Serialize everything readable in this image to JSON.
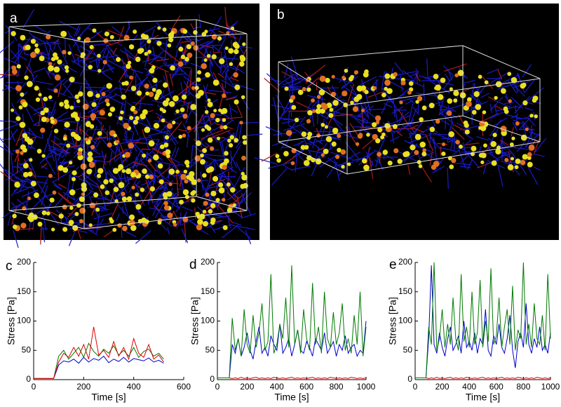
{
  "panels": [
    {
      "label": "a"
    },
    {
      "label": "b"
    }
  ],
  "chart_data": [
    {
      "type": "line",
      "label": "c",
      "xlabel": "Time [s]",
      "ylabel": "Stress [Pa]",
      "xlim": [
        0,
        600
      ],
      "ylim": [
        0,
        200
      ],
      "xticks": [
        0,
        200,
        400,
        600
      ],
      "yticks": [
        0,
        50,
        100,
        150,
        200
      ],
      "x": [
        0,
        20,
        40,
        60,
        80,
        100,
        120,
        140,
        160,
        180,
        200,
        220,
        240,
        260,
        280,
        300,
        320,
        340,
        360,
        380,
        400,
        420,
        440,
        460,
        480,
        500,
        520
      ],
      "series": [
        {
          "color": "#0000cc",
          "values": [
            2,
            2,
            2,
            2,
            2,
            25,
            32,
            30,
            35,
            28,
            38,
            30,
            36,
            33,
            40,
            29,
            35,
            31,
            38,
            30,
            36,
            34,
            32,
            37,
            30,
            33,
            28
          ]
        },
        {
          "color": "#007a00",
          "values": [
            2,
            2,
            2,
            2,
            2,
            40,
            50,
            35,
            45,
            55,
            38,
            62,
            48,
            40,
            52,
            45,
            58,
            42,
            50,
            40,
            55,
            38,
            48,
            52,
            40,
            45,
            35
          ]
        },
        {
          "color": "#e00000",
          "values": [
            2,
            2,
            2,
            2,
            2,
            30,
            45,
            38,
            55,
            40,
            60,
            35,
            90,
            42,
            50,
            38,
            65,
            40,
            55,
            35,
            70,
            45,
            38,
            60,
            35,
            42,
            30
          ]
        }
      ]
    },
    {
      "type": "line",
      "label": "d",
      "xlabel": "Time [s]",
      "ylabel": "Stress [Pa]",
      "xlim": [
        0,
        1000
      ],
      "ylim": [
        0,
        200
      ],
      "xticks": [
        0,
        200,
        400,
        600,
        800,
        1000
      ],
      "yticks": [
        0,
        50,
        100,
        150,
        200
      ],
      "x": [
        0,
        20,
        40,
        60,
        80,
        100,
        120,
        140,
        160,
        180,
        200,
        220,
        240,
        260,
        280,
        300,
        320,
        340,
        360,
        380,
        400,
        420,
        440,
        460,
        480,
        500,
        520,
        540,
        560,
        580,
        600,
        620,
        640,
        660,
        680,
        700,
        720,
        740,
        760,
        780,
        800,
        820,
        840,
        860,
        880,
        900,
        920,
        940,
        960,
        980,
        1000
      ],
      "series": [
        {
          "color": "#e00000",
          "values": [
            3,
            3,
            3,
            3,
            3,
            2,
            3,
            2,
            4,
            2,
            3,
            2,
            3,
            4,
            2,
            3,
            2,
            3,
            2,
            4,
            3,
            2,
            3,
            2,
            3,
            4,
            2,
            3,
            2,
            3,
            2,
            3,
            4,
            2,
            3,
            2,
            3,
            2,
            4,
            3,
            2,
            3,
            2,
            3,
            2,
            4,
            3,
            2,
            3,
            2,
            3
          ]
        },
        {
          "color": "#0000cc",
          "values": [
            3,
            3,
            3,
            3,
            3,
            60,
            45,
            70,
            40,
            55,
            80,
            50,
            35,
            65,
            90,
            45,
            55,
            40,
            75,
            60,
            50,
            95,
            45,
            55,
            70,
            40,
            60,
            85,
            50,
            45,
            65,
            55,
            40,
            70,
            60,
            50,
            80,
            45,
            55,
            65,
            40,
            60,
            50,
            75,
            45,
            55,
            60,
            40,
            50,
            45,
            100
          ]
        },
        {
          "color": "#007a00",
          "values": [
            3,
            3,
            3,
            3,
            3,
            105,
            50,
            70,
            40,
            120,
            60,
            45,
            110,
            55,
            80,
            130,
            50,
            65,
            180,
            45,
            60,
            95,
            70,
            140,
            55,
            195,
            60,
            85,
            45,
            120,
            70,
            50,
            165,
            60,
            90,
            45,
            150,
            70,
            55,
            115,
            60,
            80,
            130,
            50,
            70,
            45,
            110,
            60,
            150,
            40,
            90
          ]
        }
      ]
    },
    {
      "type": "line",
      "label": "e",
      "xlabel": "Time [s]",
      "ylabel": "Stress [Pa]",
      "xlim": [
        0,
        1000
      ],
      "ylim": [
        0,
        200
      ],
      "xticks": [
        0,
        200,
        400,
        600,
        800,
        1000
      ],
      "yticks": [
        0,
        50,
        100,
        150,
        200
      ],
      "x": [
        0,
        20,
        40,
        60,
        80,
        100,
        120,
        140,
        160,
        180,
        200,
        220,
        240,
        260,
        280,
        300,
        320,
        340,
        360,
        380,
        400,
        420,
        440,
        460,
        480,
        500,
        520,
        540,
        560,
        580,
        600,
        620,
        640,
        660,
        680,
        700,
        720,
        740,
        760,
        780,
        800,
        820,
        840,
        860,
        880,
        900,
        920,
        940,
        960,
        980,
        1000
      ],
      "series": [
        {
          "color": "#e00000",
          "values": [
            3,
            3,
            3,
            3,
            3,
            2,
            3,
            2,
            4,
            2,
            3,
            2,
            3,
            4,
            2,
            3,
            2,
            3,
            2,
            4,
            3,
            2,
            3,
            2,
            3,
            4,
            2,
            3,
            2,
            3,
            2,
            3,
            4,
            2,
            3,
            2,
            3,
            2,
            4,
            3,
            2,
            3,
            2,
            3,
            2,
            4,
            3,
            2,
            3,
            2,
            3
          ]
        },
        {
          "color": "#0000cc",
          "values": [
            3,
            3,
            3,
            3,
            3,
            70,
            195,
            60,
            45,
            80,
            55,
            40,
            70,
            90,
            50,
            60,
            75,
            45,
            100,
            55,
            65,
            50,
            80,
            45,
            70,
            60,
            120,
            50,
            40,
            75,
            60,
            95,
            55,
            45,
            70,
            110,
            50,
            20,
            65,
            80,
            55,
            130,
            60,
            45,
            70,
            55,
            90,
            50,
            60,
            45,
            80
          ]
        },
        {
          "color": "#007a00",
          "values": [
            3,
            3,
            3,
            3,
            3,
            90,
            60,
            200,
            50,
            70,
            120,
            55,
            95,
            60,
            140,
            70,
            50,
            180,
            65,
            90,
            55,
            150,
            60,
            80,
            170,
            55,
            100,
            65,
            190,
            60,
            75,
            140,
            55,
            90,
            120,
            60,
            160,
            50,
            85,
            70,
            200,
            60,
            95,
            55,
            130,
            70,
            60,
            110,
            50,
            180,
            70
          ]
        }
      ]
    }
  ]
}
